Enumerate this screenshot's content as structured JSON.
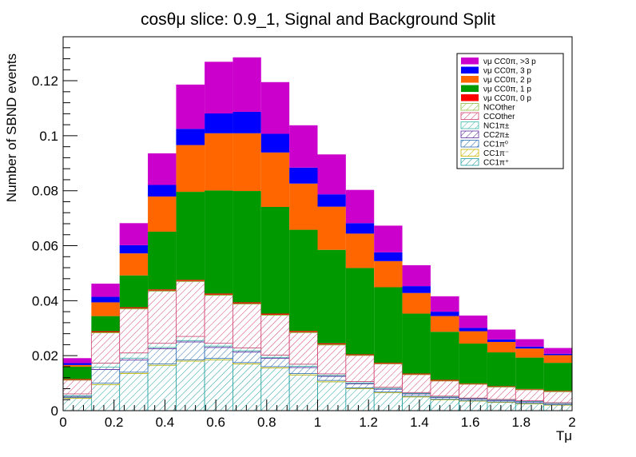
{
  "chart_data": {
    "type": "bar",
    "stacked": true,
    "title": "cosθμ slice: 0.9_1, Signal and Background Split",
    "xlabel": "Tμ",
    "ylabel": "Number of SBND events",
    "xlim": [
      0,
      2
    ],
    "ylim": [
      0,
      0.136
    ],
    "x_ticks": [
      "0",
      "0.2",
      "0.4",
      "0.6",
      "0.8",
      "1",
      "1.2",
      "1.4",
      "1.6",
      "1.8",
      "2"
    ],
    "y_ticks": [
      "0",
      "0.02",
      "0.04",
      "0.06",
      "0.08",
      "0.1",
      "0.12"
    ],
    "bin_edges": [
      0,
      0.111,
      0.222,
      0.333,
      0.444,
      0.556,
      0.667,
      0.778,
      0.889,
      1.0,
      1.111,
      1.222,
      1.333,
      1.444,
      1.556,
      1.667,
      1.778,
      1.889,
      2.0
    ],
    "legend_position": "top-right",
    "series": [
      {
        "name": "CC1π⁺",
        "pattern": "hatch",
        "color": "#1f9f9f",
        "values": [
          0.0045,
          0.0095,
          0.0135,
          0.0165,
          0.018,
          0.0185,
          0.017,
          0.0155,
          0.013,
          0.0105,
          0.008,
          0.0065,
          0.005,
          0.004,
          0.0035,
          0.003,
          0.0025,
          0.002
        ]
      },
      {
        "name": "CC1π⁻",
        "pattern": "hatch",
        "color": "#c8b400",
        "values": [
          0.0003,
          0.0005,
          0.0005,
          0.0005,
          0.0005,
          0.0005,
          0.0005,
          0.0005,
          0.0005,
          0.0005,
          0.0003,
          0.0003,
          0.0003,
          0.0002,
          0.0002,
          0.0002,
          0.0002,
          0.0002
        ]
      },
      {
        "name": "CC1π⁰",
        "pattern": "hatch",
        "color": "#2a6fb8",
        "values": [
          0.0004,
          0.005,
          0.0044,
          0.0055,
          0.0065,
          0.004,
          0.0038,
          0.003,
          0.0022,
          0.0015,
          0.0015,
          0.001,
          0.0008,
          0.0006,
          0.0005,
          0.0005,
          0.0005,
          0.0004
        ]
      },
      {
        "name": "CC2π±",
        "pattern": "hatch",
        "color": "#5b2a9e",
        "values": [
          0.0002,
          0.0008,
          0.0007,
          0.0005,
          0.0005,
          0.0005,
          0.0005,
          0.0004,
          0.0004,
          0.0003,
          0.0003,
          0.0003,
          0.0002,
          0.0002,
          0.0002,
          0.0002,
          0.0002,
          0.0001
        ]
      },
      {
        "name": "NC1π±",
        "pattern": "hatch",
        "color": "#3cb8a8",
        "values": [
          0.0007,
          0.0015,
          0.0019,
          0.0015,
          0.0015,
          0.001,
          0.001,
          0.0008,
          0.0008,
          0.0006,
          0.0005,
          0.0004,
          0.0003,
          0.0003,
          0.0002,
          0.0002,
          0.0002,
          0.0002
        ]
      },
      {
        "name": "CCOther",
        "pattern": "hatch",
        "color": "#d04070",
        "values": [
          0.005,
          0.011,
          0.016,
          0.019,
          0.02,
          0.0175,
          0.016,
          0.0145,
          0.0115,
          0.0105,
          0.0095,
          0.0085,
          0.0065,
          0.0055,
          0.005,
          0.0045,
          0.004,
          0.004
        ]
      },
      {
        "name": "NCOther",
        "pattern": "hatch",
        "color": "#88c040",
        "values": [
          0.0001,
          0.0002,
          0.0002,
          0.0002,
          0.0002,
          0.0002,
          0.0002,
          0.0002,
          0.0002,
          0.0002,
          0.0001,
          0.0001,
          0.0001,
          0.0001,
          0.0001,
          0.0001,
          0.0001,
          0.0001
        ]
      },
      {
        "name": "νμ CC0π, 0 p",
        "pattern": "solid",
        "color": "#ff0000",
        "values": [
          0.0003,
          0.0004,
          0.0004,
          0.0004,
          0.0004,
          0.0004,
          0.0004,
          0.0004,
          0.0004,
          0.0004,
          0.0003,
          0.0003,
          0.0003,
          0.0003,
          0.0002,
          0.0002,
          0.0002,
          0.0002
        ]
      },
      {
        "name": "νμ CC0π, 1 p",
        "pattern": "solid",
        "color": "#009900",
        "values": [
          0.0045,
          0.0055,
          0.0116,
          0.021,
          0.032,
          0.0375,
          0.0405,
          0.0388,
          0.0368,
          0.034,
          0.0314,
          0.0275,
          0.0218,
          0.0175,
          0.0145,
          0.0123,
          0.0114,
          0.0102
        ]
      },
      {
        "name": "νμ CC0π, 2 p",
        "pattern": "solid",
        "color": "#ff6600",
        "values": [
          0.0006,
          0.005,
          0.008,
          0.0128,
          0.017,
          0.0208,
          0.021,
          0.0198,
          0.0168,
          0.0157,
          0.0125,
          0.0095,
          0.0075,
          0.0057,
          0.0045,
          0.0038,
          0.0033,
          0.0028
        ]
      },
      {
        "name": "νμ CC0π, 3 p",
        "pattern": "solid",
        "color": "#0000ff",
        "values": [
          0.0007,
          0.002,
          0.003,
          0.0042,
          0.0059,
          0.0072,
          0.0078,
          0.0068,
          0.0058,
          0.0045,
          0.0038,
          0.0032,
          0.0025,
          0.0016,
          0.0012,
          0.0009,
          0.0007,
          0.0005
        ]
      },
      {
        "name": "νμ CC0π, >3 p",
        "pattern": "solid",
        "color": "#cc00cc",
        "values": [
          0.0018,
          0.0048,
          0.008,
          0.0115,
          0.0161,
          0.0188,
          0.0198,
          0.0188,
          0.0154,
          0.0145,
          0.0121,
          0.0097,
          0.0076,
          0.0056,
          0.0045,
          0.0036,
          0.0027,
          0.0021
        ]
      }
    ]
  }
}
